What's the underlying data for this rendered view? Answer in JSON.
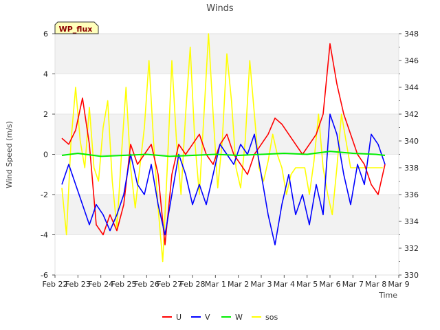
{
  "chart_data": {
    "type": "line",
    "title": "Winds",
    "badge": "WP_flux",
    "xlabel": "Time",
    "ylabel": "Wind Speed (m/s)",
    "ylim": [
      -6,
      6
    ],
    "y2lim": [
      330,
      348
    ],
    "yticks": [
      -6,
      -4,
      -2,
      0,
      2,
      4,
      6
    ],
    "y2ticks": [
      330,
      332,
      334,
      336,
      338,
      340,
      342,
      344,
      346,
      348
    ],
    "xlim": [
      0,
      15
    ],
    "xticks": [
      {
        "pos": 0,
        "label": "Feb 22"
      },
      {
        "pos": 1,
        "label": "Feb 23"
      },
      {
        "pos": 2,
        "label": "Feb 24"
      },
      {
        "pos": 3,
        "label": "Feb 25"
      },
      {
        "pos": 4,
        "label": "Feb 26"
      },
      {
        "pos": 5,
        "label": "Feb 27"
      },
      {
        "pos": 6,
        "label": "Feb 28"
      },
      {
        "pos": 7,
        "label": "Mar 1"
      },
      {
        "pos": 8,
        "label": "Mar 2"
      },
      {
        "pos": 9,
        "label": "Mar 3"
      },
      {
        "pos": 10,
        "label": "Mar 4"
      },
      {
        "pos": 11,
        "label": "Mar 5"
      },
      {
        "pos": 12,
        "label": "Mar 6"
      },
      {
        "pos": 13,
        "label": "Mar 7"
      },
      {
        "pos": 14,
        "label": "Mar 8"
      },
      {
        "pos": 15,
        "label": "Mar 9"
      }
    ],
    "grid": "horizontal bands",
    "legend_position": "bottom-center",
    "series": [
      {
        "name": "U",
        "color": "#ff0000",
        "axis": "left",
        "x": [
          0.3,
          0.6,
          0.9,
          1.2,
          1.5,
          1.8,
          2.1,
          2.4,
          2.7,
          3.0,
          3.3,
          3.6,
          3.9,
          4.2,
          4.5,
          4.8,
          5.1,
          5.4,
          5.7,
          6.0,
          6.3,
          6.6,
          6.9,
          7.2,
          7.5,
          7.8,
          8.1,
          8.4,
          8.7,
          9.0,
          9.3,
          9.6,
          9.9,
          10.2,
          10.5,
          10.8,
          11.1,
          11.4,
          11.7,
          12.0,
          12.3,
          12.6,
          12.9,
          13.2,
          13.5,
          13.8,
          14.1,
          14.4
        ],
        "values": [
          0.8,
          0.5,
          1.2,
          2.8,
          0.5,
          -3.5,
          -4.0,
          -3.0,
          -3.8,
          -2.5,
          0.5,
          -0.5,
          0.0,
          0.5,
          -1.0,
          -4.5,
          -1.0,
          0.5,
          0.0,
          0.5,
          1.0,
          0.0,
          -0.5,
          0.5,
          1.0,
          0.0,
          -0.5,
          -1.0,
          0.0,
          0.5,
          1.0,
          1.8,
          1.5,
          1.0,
          0.5,
          0.0,
          0.5,
          1.0,
          2.0,
          5.5,
          3.5,
          2.0,
          1.0,
          0.0,
          -0.5,
          -1.5,
          -2.0,
          -0.5
        ]
      },
      {
        "name": "V",
        "color": "#0000ff",
        "axis": "left",
        "x": [
          0.3,
          0.6,
          0.9,
          1.2,
          1.5,
          1.8,
          2.1,
          2.4,
          2.7,
          3.0,
          3.3,
          3.6,
          3.9,
          4.2,
          4.5,
          4.8,
          5.1,
          5.4,
          5.7,
          6.0,
          6.3,
          6.6,
          6.9,
          7.2,
          7.5,
          7.8,
          8.1,
          8.4,
          8.7,
          9.0,
          9.3,
          9.6,
          9.9,
          10.2,
          10.5,
          10.8,
          11.1,
          11.4,
          11.7,
          12.0,
          12.3,
          12.6,
          12.9,
          13.2,
          13.5,
          13.8,
          14.1,
          14.4
        ],
        "values": [
          -1.5,
          -0.5,
          -1.5,
          -2.5,
          -3.5,
          -2.5,
          -3.0,
          -3.8,
          -3.0,
          -2.0,
          0.0,
          -1.5,
          -2.0,
          -0.5,
          -2.5,
          -4.0,
          -2.0,
          0.0,
          -1.0,
          -2.5,
          -1.5,
          -2.5,
          -1.0,
          0.5,
          0.0,
          -0.5,
          0.5,
          0.0,
          1.0,
          -1.0,
          -3.0,
          -4.5,
          -2.5,
          -1.0,
          -3.0,
          -2.0,
          -3.5,
          -1.5,
          -3.0,
          2.0,
          1.0,
          -1.0,
          -2.5,
          -0.5,
          -1.5,
          1.0,
          0.5,
          -0.5
        ]
      },
      {
        "name": "W",
        "color": "#00ee00",
        "axis": "left",
        "x": [
          0.3,
          1.0,
          2.0,
          3.0,
          4.0,
          5.0,
          6.0,
          7.0,
          8.0,
          9.0,
          10.0,
          11.0,
          12.0,
          13.0,
          14.0,
          14.4
        ],
        "values": [
          -0.05,
          0.05,
          -0.1,
          -0.05,
          0.0,
          -0.1,
          -0.05,
          0.0,
          -0.05,
          0.0,
          0.05,
          0.0,
          0.15,
          0.05,
          0.0,
          -0.05
        ]
      },
      {
        "name": "sos",
        "color": "#ffff00",
        "axis": "right",
        "x": [
          0.3,
          0.5,
          0.7,
          0.9,
          1.1,
          1.3,
          1.5,
          1.7,
          1.9,
          2.1,
          2.3,
          2.5,
          2.7,
          2.9,
          3.1,
          3.3,
          3.5,
          3.7,
          3.9,
          4.1,
          4.3,
          4.5,
          4.7,
          4.9,
          5.1,
          5.3,
          5.5,
          5.7,
          5.9,
          6.1,
          6.3,
          6.5,
          6.7,
          6.9,
          7.1,
          7.3,
          7.5,
          7.7,
          7.9,
          8.1,
          8.3,
          8.5,
          8.7,
          8.9,
          9.1,
          9.3,
          9.5,
          9.7,
          9.9,
          10.1,
          10.3,
          10.5,
          10.7,
          10.9,
          11.1,
          11.3,
          11.5,
          11.7,
          11.9,
          12.1,
          12.3,
          12.5,
          12.7,
          12.9,
          13.1,
          13.3,
          13.5,
          13.7,
          13.9,
          14.1,
          14.3
        ],
        "values": [
          336.5,
          333.0,
          340.0,
          344.0,
          340.0,
          338.0,
          342.5,
          338.0,
          337.0,
          341.0,
          343.0,
          337.0,
          333.5,
          339.0,
          344.0,
          338.0,
          335.0,
          338.0,
          341.0,
          346.0,
          340.0,
          335.0,
          331.0,
          338.0,
          346.0,
          340.0,
          336.0,
          342.0,
          347.0,
          340.0,
          336.0,
          342.0,
          348.0,
          342.0,
          336.5,
          340.0,
          346.5,
          343.0,
          338.0,
          336.5,
          340.0,
          346.0,
          342.0,
          338.0,
          337.0,
          338.5,
          340.5,
          339.0,
          338.0,
          336.0,
          337.5,
          338.0,
          338.0,
          338.0,
          336.0,
          338.5,
          342.0,
          338.0,
          336.0,
          334.5,
          338.0,
          342.0,
          340.0,
          338.0,
          338.0,
          338.0,
          338.0,
          338.0,
          338.0,
          338.0,
          338.0
        ]
      }
    ]
  }
}
